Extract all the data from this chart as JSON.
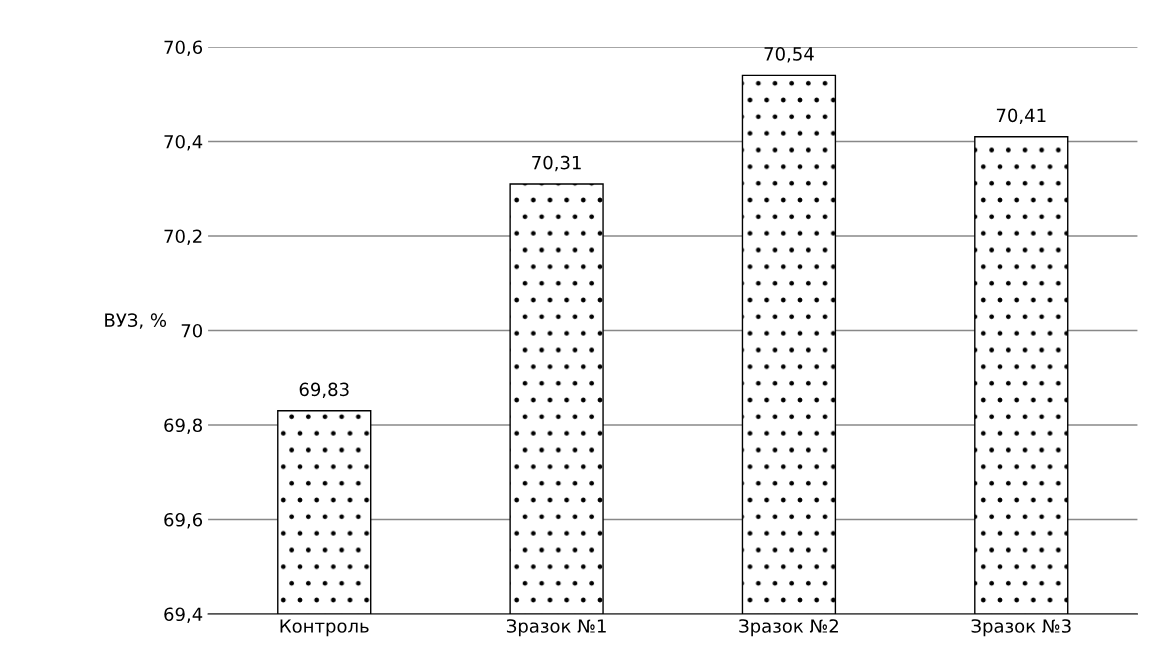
{
  "chart_data": {
    "type": "bar",
    "ylabel": "ВУЗ, %",
    "categories": [
      "Контроль",
      "Зразок №1",
      "Зразок №2",
      "Зразок №3"
    ],
    "values": [
      69.83,
      70.31,
      70.54,
      70.41
    ],
    "value_labels": [
      "69,83",
      "70,31",
      "70,54",
      "70,41"
    ],
    "color": "#ffffff",
    "ylim": [
      69.4,
      70.6
    ],
    "yticks": [
      {
        "value": 69.4,
        "label": "69,4"
      },
      {
        "value": 69.6,
        "label": "69,6"
      },
      {
        "value": 69.8,
        "label": "69,8"
      },
      70,
      {
        "value": 70.2,
        "label": "70,2"
      },
      {
        "value": 70.4,
        "label": "70,4"
      },
      {
        "value": 70.6,
        "label": "70,6"
      }
    ],
    "grid": "y"
  }
}
